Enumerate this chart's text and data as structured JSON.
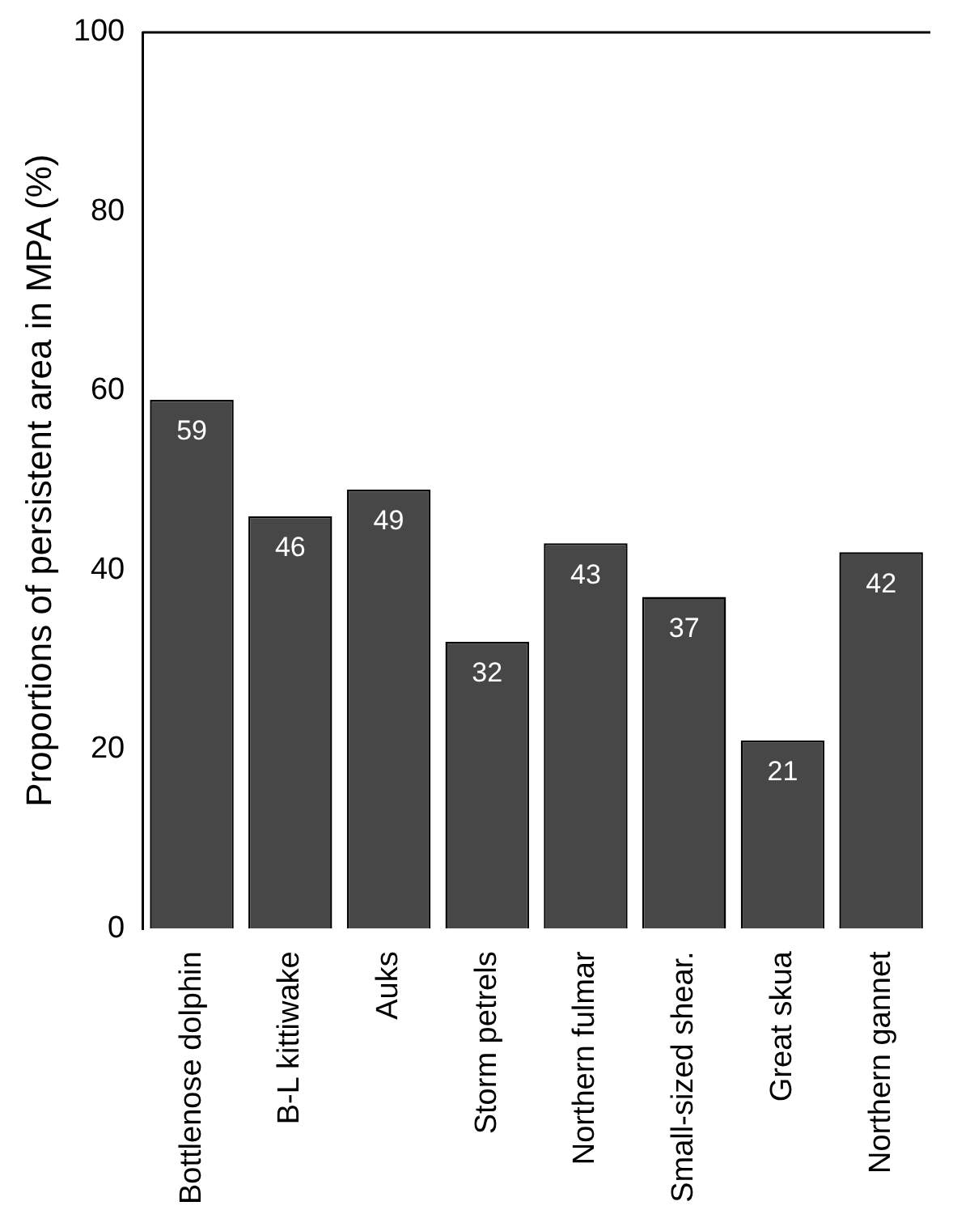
{
  "chart_data": {
    "type": "bar",
    "ylabel": "Proportions of persistent area in MPA (%)",
    "categories": [
      "Bottlenose dolphin",
      "B-L kittiwake",
      "Auks",
      "Storm petrels",
      "Northern fulmar",
      "Small-sized shear.",
      "Great skua",
      "Northern gannet"
    ],
    "values": [
      59,
      46,
      49,
      32,
      43,
      37,
      21,
      42
    ],
    "color": "#474747",
    "ylim": [
      0,
      100
    ],
    "yticks": [
      0,
      20,
      40,
      60,
      80,
      100
    ],
    "grid": false,
    "legend": false,
    "data_labels": true
  }
}
